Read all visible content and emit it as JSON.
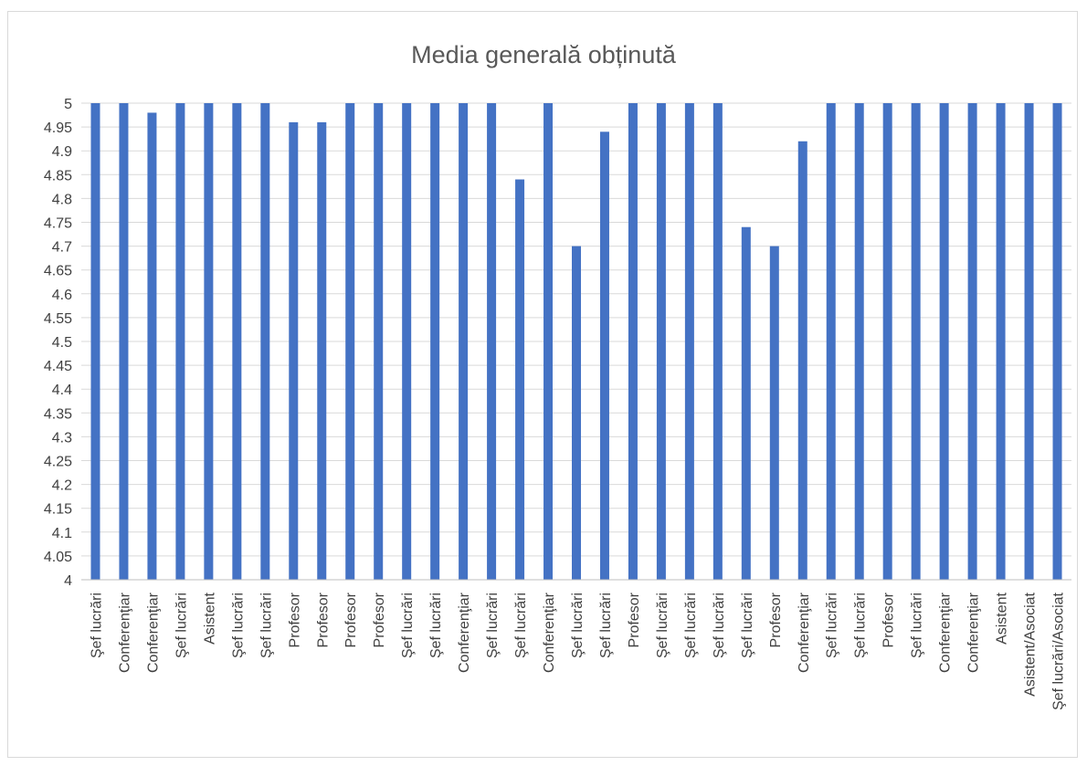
{
  "chart_data": {
    "type": "bar",
    "title": "Media generală obținută",
    "xlabel": "",
    "ylabel": "",
    "ylim": [
      4,
      5
    ],
    "ytick_step": 0.05,
    "grid": true,
    "legend": "none",
    "bar_color": "#4472c4",
    "grid_color": "#d9d9d9",
    "categories": [
      "Şef lucrări",
      "Conferenţiar",
      "Conferenţiar",
      "Şef lucrări",
      "Asistent",
      "Şef lucrări",
      "Şef lucrări",
      "Profesor",
      "Profesor",
      "Profesor",
      "Profesor",
      "Şef lucrări",
      "Şef lucrări",
      "Conferenţiar",
      "Şef lucrări",
      "Şef lucrări",
      "Conferenţiar",
      "Şef lucrări",
      "Şef lucrări",
      "Profesor",
      "Şef lucrări",
      "Şef lucrări",
      "Şef lucrări",
      "Şef lucrări",
      "Profesor",
      "Conferenţiar",
      "Şef  lucrări",
      "Şef lucrări",
      "Profesor",
      "Şef lucrări",
      "Conferenţiar",
      "Conferenţiar",
      "Asistent",
      "Asistent/Asociat",
      "Şef lucrări/Asociat"
    ],
    "values": [
      5,
      5,
      4.98,
      5,
      5,
      5,
      5,
      4.96,
      4.96,
      5,
      5,
      5,
      5,
      5,
      5,
      4.84,
      5,
      4.7,
      4.94,
      5,
      5,
      5,
      5,
      4.74,
      4.7,
      4.92,
      5,
      5,
      5,
      5,
      5,
      5,
      5,
      5,
      5
    ]
  }
}
